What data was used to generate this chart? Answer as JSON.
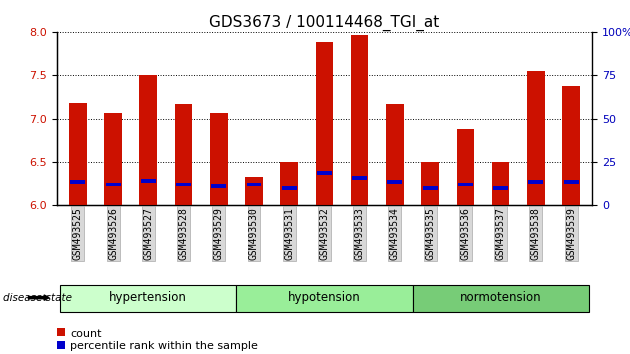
{
  "title": "GDS3673 / 100114468_TGI_at",
  "samples": [
    "GSM493525",
    "GSM493526",
    "GSM493527",
    "GSM493528",
    "GSM493529",
    "GSM493530",
    "GSM493531",
    "GSM493532",
    "GSM493533",
    "GSM493534",
    "GSM493535",
    "GSM493536",
    "GSM493537",
    "GSM493538",
    "GSM493539"
  ],
  "red_values": [
    7.18,
    7.07,
    7.5,
    7.17,
    7.07,
    6.33,
    6.5,
    7.88,
    7.96,
    7.17,
    6.5,
    6.88,
    6.5,
    7.55,
    7.38
  ],
  "blue_values": [
    6.27,
    6.24,
    6.28,
    6.24,
    6.22,
    6.24,
    6.2,
    6.37,
    6.32,
    6.27,
    6.2,
    6.24,
    6.2,
    6.27,
    6.27
  ],
  "ymin": 6.0,
  "ymax": 8.0,
  "yticks_left": [
    6.0,
    6.5,
    7.0,
    7.5,
    8.0
  ],
  "yticks_right": [
    0,
    25,
    50,
    75,
    100
  ],
  "groups": [
    {
      "label": "hypertension",
      "start": 0,
      "end": 5
    },
    {
      "label": "hypotension",
      "start": 5,
      "end": 10
    },
    {
      "label": "normotension",
      "start": 10,
      "end": 15
    }
  ],
  "group_colors": [
    "#ccffcc",
    "#99ee99",
    "#77cc77"
  ],
  "disease_state_label": "disease state",
  "legend_items": [
    {
      "color": "#cc1100",
      "label": "count"
    },
    {
      "color": "#0000cc",
      "label": "percentile rank within the sample"
    }
  ],
  "bar_color": "#cc1100",
  "blue_color": "#0000cc",
  "bar_width": 0.5,
  "title_fontsize": 11,
  "tick_label_fontsize": 7,
  "axis_label_color_left": "#cc1100",
  "axis_label_color_right": "#0000bb",
  "background_plot": "#ffffff"
}
